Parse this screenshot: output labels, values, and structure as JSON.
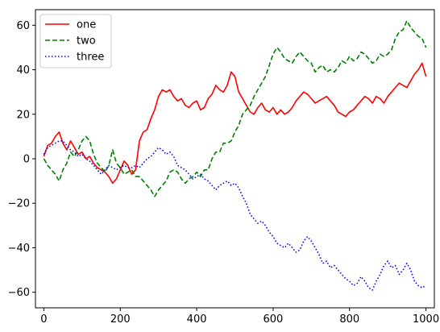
{
  "chart_data": {
    "type": "line",
    "title": "",
    "xlabel": "",
    "ylabel": "",
    "xlim": [
      -22,
      1022
    ],
    "ylim": [
      -67,
      67
    ],
    "xticks": [
      0,
      200,
      400,
      600,
      800,
      1000
    ],
    "yticks": [
      -60,
      -40,
      -20,
      0,
      20,
      40,
      60
    ],
    "grid": false,
    "legend_position": "upper left",
    "series": [
      {
        "name": "one",
        "color": "#ff0000",
        "linestyle": "solid",
        "points": [
          [
            0,
            1
          ],
          [
            10,
            6
          ],
          [
            20,
            7
          ],
          [
            30,
            10
          ],
          [
            40,
            12
          ],
          [
            50,
            7
          ],
          [
            60,
            4
          ],
          [
            70,
            8
          ],
          [
            80,
            5
          ],
          [
            90,
            2
          ],
          [
            100,
            3
          ],
          [
            110,
            0
          ],
          [
            120,
            1
          ],
          [
            130,
            -2
          ],
          [
            140,
            -4
          ],
          [
            150,
            -5
          ],
          [
            160,
            -6
          ],
          [
            170,
            -8
          ],
          [
            180,
            -11
          ],
          [
            190,
            -9
          ],
          [
            200,
            -5
          ],
          [
            210,
            -1
          ],
          [
            220,
            -3
          ],
          [
            230,
            -7
          ],
          [
            240,
            -5
          ],
          [
            250,
            8
          ],
          [
            260,
            12
          ],
          [
            270,
            13
          ],
          [
            280,
            18
          ],
          [
            290,
            22
          ],
          [
            300,
            28
          ],
          [
            310,
            31
          ],
          [
            320,
            30
          ],
          [
            330,
            31
          ],
          [
            340,
            28
          ],
          [
            350,
            26
          ],
          [
            360,
            27
          ],
          [
            370,
            24
          ],
          [
            380,
            23
          ],
          [
            390,
            25
          ],
          [
            400,
            26
          ],
          [
            410,
            22
          ],
          [
            420,
            23
          ],
          [
            430,
            27
          ],
          [
            440,
            29
          ],
          [
            450,
            33
          ],
          [
            460,
            31
          ],
          [
            470,
            30
          ],
          [
            480,
            33
          ],
          [
            490,
            39
          ],
          [
            500,
            37
          ],
          [
            510,
            30
          ],
          [
            520,
            27
          ],
          [
            530,
            24
          ],
          [
            540,
            21
          ],
          [
            550,
            20
          ],
          [
            560,
            23
          ],
          [
            570,
            25
          ],
          [
            580,
            22
          ],
          [
            590,
            21
          ],
          [
            600,
            23
          ],
          [
            610,
            20
          ],
          [
            620,
            22
          ],
          [
            630,
            20
          ],
          [
            640,
            21
          ],
          [
            650,
            23
          ],
          [
            660,
            26
          ],
          [
            670,
            28
          ],
          [
            680,
            30
          ],
          [
            690,
            29
          ],
          [
            700,
            27
          ],
          [
            710,
            25
          ],
          [
            720,
            26
          ],
          [
            730,
            27
          ],
          [
            740,
            28
          ],
          [
            750,
            26
          ],
          [
            760,
            24
          ],
          [
            770,
            21
          ],
          [
            780,
            20
          ],
          [
            790,
            19
          ],
          [
            800,
            21
          ],
          [
            810,
            22
          ],
          [
            820,
            24
          ],
          [
            830,
            26
          ],
          [
            840,
            28
          ],
          [
            850,
            27
          ],
          [
            860,
            25
          ],
          [
            870,
            28
          ],
          [
            880,
            27
          ],
          [
            890,
            25
          ],
          [
            900,
            28
          ],
          [
            910,
            30
          ],
          [
            920,
            32
          ],
          [
            930,
            34
          ],
          [
            940,
            33
          ],
          [
            950,
            32
          ],
          [
            960,
            35
          ],
          [
            970,
            38
          ],
          [
            980,
            40
          ],
          [
            990,
            43
          ],
          [
            1000,
            37
          ]
        ]
      },
      {
        "name": "two",
        "color": "#008000",
        "linestyle": "dashed",
        "points": [
          [
            0,
            0
          ],
          [
            10,
            -3
          ],
          [
            20,
            -5
          ],
          [
            30,
            -7
          ],
          [
            40,
            -10
          ],
          [
            50,
            -5
          ],
          [
            60,
            -2
          ],
          [
            70,
            3
          ],
          [
            80,
            1
          ],
          [
            90,
            4
          ],
          [
            100,
            8
          ],
          [
            110,
            10
          ],
          [
            120,
            8
          ],
          [
            130,
            2
          ],
          [
            140,
            -2
          ],
          [
            150,
            -4
          ],
          [
            160,
            -6
          ],
          [
            170,
            -3
          ],
          [
            180,
            4
          ],
          [
            190,
            -2
          ],
          [
            200,
            -4
          ],
          [
            210,
            -7
          ],
          [
            220,
            -6
          ],
          [
            230,
            -5
          ],
          [
            240,
            -8
          ],
          [
            250,
            -8
          ],
          [
            260,
            -10
          ],
          [
            270,
            -12
          ],
          [
            280,
            -14
          ],
          [
            290,
            -17
          ],
          [
            300,
            -14
          ],
          [
            310,
            -12
          ],
          [
            320,
            -10
          ],
          [
            330,
            -6
          ],
          [
            340,
            -5
          ],
          [
            350,
            -6
          ],
          [
            360,
            -9
          ],
          [
            370,
            -11
          ],
          [
            380,
            -9
          ],
          [
            390,
            -8
          ],
          [
            400,
            -6
          ],
          [
            410,
            -8
          ],
          [
            420,
            -5
          ],
          [
            430,
            -5
          ],
          [
            440,
            0
          ],
          [
            450,
            3
          ],
          [
            460,
            3
          ],
          [
            470,
            7
          ],
          [
            480,
            7
          ],
          [
            490,
            8
          ],
          [
            500,
            12
          ],
          [
            510,
            15
          ],
          [
            520,
            20
          ],
          [
            530,
            22
          ],
          [
            540,
            24
          ],
          [
            550,
            28
          ],
          [
            560,
            31
          ],
          [
            570,
            34
          ],
          [
            580,
            37
          ],
          [
            590,
            42
          ],
          [
            600,
            47
          ],
          [
            610,
            50
          ],
          [
            620,
            48
          ],
          [
            630,
            45
          ],
          [
            640,
            44
          ],
          [
            650,
            43
          ],
          [
            660,
            46
          ],
          [
            670,
            48
          ],
          [
            680,
            46
          ],
          [
            690,
            44
          ],
          [
            700,
            43
          ],
          [
            710,
            39
          ],
          [
            720,
            41
          ],
          [
            730,
            42
          ],
          [
            740,
            39
          ],
          [
            750,
            40
          ],
          [
            760,
            39
          ],
          [
            770,
            41
          ],
          [
            780,
            44
          ],
          [
            790,
            43
          ],
          [
            800,
            46
          ],
          [
            810,
            44
          ],
          [
            820,
            45
          ],
          [
            830,
            48
          ],
          [
            840,
            47
          ],
          [
            850,
            45
          ],
          [
            860,
            43
          ],
          [
            870,
            44
          ],
          [
            880,
            47
          ],
          [
            890,
            46
          ],
          [
            900,
            47
          ],
          [
            910,
            49
          ],
          [
            920,
            54
          ],
          [
            930,
            57
          ],
          [
            940,
            58
          ],
          [
            950,
            62
          ],
          [
            960,
            59
          ],
          [
            970,
            57
          ],
          [
            980,
            55
          ],
          [
            990,
            54
          ],
          [
            1000,
            50
          ]
        ]
      },
      {
        "name": "three",
        "color": "#0000ff",
        "linestyle": "dotted",
        "points": [
          [
            0,
            2
          ],
          [
            10,
            5
          ],
          [
            20,
            6
          ],
          [
            30,
            7
          ],
          [
            40,
            8
          ],
          [
            50,
            8
          ],
          [
            60,
            6
          ],
          [
            70,
            4
          ],
          [
            80,
            3
          ],
          [
            90,
            1
          ],
          [
            100,
            2
          ],
          [
            110,
            0
          ],
          [
            120,
            -1
          ],
          [
            130,
            -3
          ],
          [
            140,
            -5
          ],
          [
            150,
            -7
          ],
          [
            160,
            -5
          ],
          [
            170,
            -3
          ],
          [
            180,
            -4
          ],
          [
            190,
            -5
          ],
          [
            200,
            -4
          ],
          [
            210,
            -3
          ],
          [
            220,
            -4
          ],
          [
            230,
            -4
          ],
          [
            240,
            -3
          ],
          [
            250,
            -4
          ],
          [
            260,
            -2
          ],
          [
            270,
            0
          ],
          [
            280,
            1
          ],
          [
            290,
            3
          ],
          [
            300,
            5
          ],
          [
            310,
            4
          ],
          [
            320,
            2
          ],
          [
            330,
            3
          ],
          [
            340,
            1
          ],
          [
            350,
            -3
          ],
          [
            360,
            -4
          ],
          [
            370,
            -5
          ],
          [
            380,
            -7
          ],
          [
            390,
            -9
          ],
          [
            400,
            -8
          ],
          [
            410,
            -7
          ],
          [
            420,
            -9
          ],
          [
            430,
            -10
          ],
          [
            440,
            -12
          ],
          [
            450,
            -14
          ],
          [
            460,
            -12
          ],
          [
            470,
            -11
          ],
          [
            480,
            -10
          ],
          [
            490,
            -12
          ],
          [
            500,
            -11
          ],
          [
            510,
            -13
          ],
          [
            520,
            -17
          ],
          [
            530,
            -20
          ],
          [
            540,
            -25
          ],
          [
            550,
            -27
          ],
          [
            560,
            -29
          ],
          [
            570,
            -28
          ],
          [
            580,
            -30
          ],
          [
            590,
            -33
          ],
          [
            600,
            -35
          ],
          [
            610,
            -38
          ],
          [
            620,
            -39
          ],
          [
            630,
            -40
          ],
          [
            640,
            -38
          ],
          [
            650,
            -40
          ],
          [
            660,
            -42
          ],
          [
            670,
            -41
          ],
          [
            680,
            -37
          ],
          [
            690,
            -35
          ],
          [
            700,
            -37
          ],
          [
            710,
            -40
          ],
          [
            720,
            -43
          ],
          [
            730,
            -47
          ],
          [
            740,
            -46
          ],
          [
            750,
            -49
          ],
          [
            760,
            -48
          ],
          [
            770,
            -50
          ],
          [
            780,
            -52
          ],
          [
            790,
            -54
          ],
          [
            800,
            -55
          ],
          [
            810,
            -57
          ],
          [
            820,
            -56
          ],
          [
            830,
            -53
          ],
          [
            840,
            -55
          ],
          [
            850,
            -58
          ],
          [
            860,
            -59
          ],
          [
            870,
            -55
          ],
          [
            880,
            -52
          ],
          [
            890,
            -48
          ],
          [
            900,
            -46
          ],
          [
            910,
            -49
          ],
          [
            920,
            -48
          ],
          [
            930,
            -52
          ],
          [
            940,
            -50
          ],
          [
            950,
            -47
          ],
          [
            960,
            -50
          ],
          [
            970,
            -55
          ],
          [
            980,
            -57
          ],
          [
            990,
            -58
          ],
          [
            1000,
            -57
          ]
        ]
      }
    ]
  }
}
